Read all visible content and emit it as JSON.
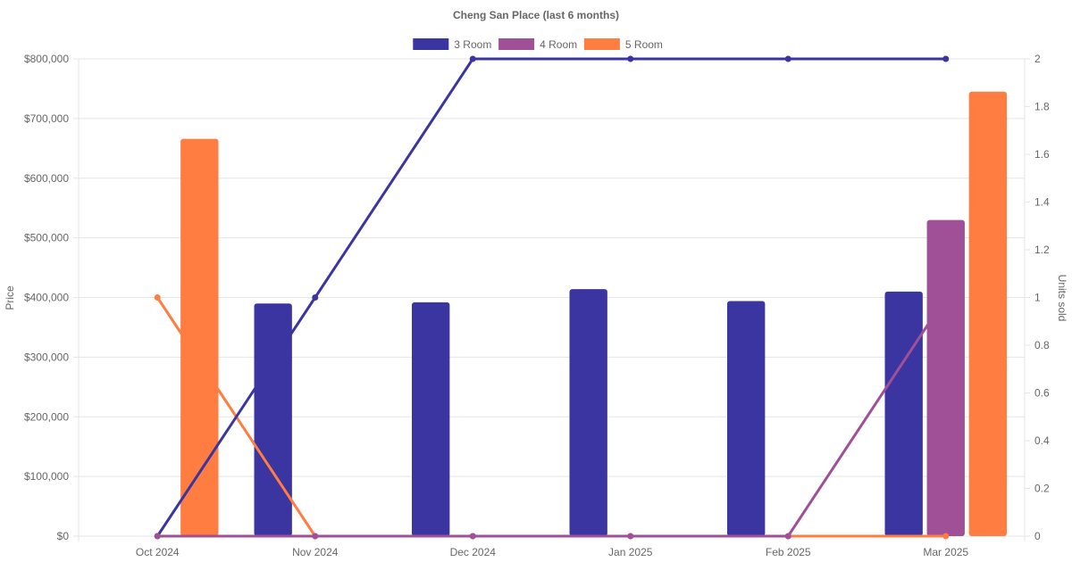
{
  "chart_data": {
    "type": "bar",
    "title": "Cheng San Place (last 6 months)",
    "categories": [
      "Oct 2024",
      "Nov 2024",
      "Dec 2024",
      "Jan 2025",
      "Feb 2025",
      "Mar 2025"
    ],
    "y_left": {
      "label": "Price",
      "range": [
        0,
        800000
      ],
      "ticks": [
        "$0",
        "$100,000",
        "$200,000",
        "$300,000",
        "$400,000",
        "$500,000",
        "$600,000",
        "$700,000",
        "$800,000"
      ]
    },
    "y_right": {
      "label": "Units sold",
      "range": [
        0,
        2
      ],
      "ticks": [
        "0",
        "0.2",
        "0.4",
        "0.6",
        "0.8",
        "1",
        "1.2",
        "1.4",
        "1.6",
        "1.8",
        "2"
      ]
    },
    "grid": true,
    "legend_position": "top-center",
    "series": [
      {
        "name": "3 Room",
        "color": "#3a35a0",
        "price": [
          null,
          390000,
          392000,
          414000,
          394000,
          410000
        ],
        "units": [
          0,
          1,
          2,
          2,
          2,
          2
        ]
      },
      {
        "name": "4 Room",
        "color": "#a05096",
        "price": [
          null,
          null,
          null,
          null,
          null,
          530000
        ],
        "units": [
          0,
          0,
          0,
          0,
          0,
          1
        ]
      },
      {
        "name": "5 Room",
        "color": "#ff7d40",
        "price": [
          666000,
          null,
          null,
          null,
          null,
          745000
        ],
        "units": [
          1,
          0,
          0,
          0,
          0,
          0
        ]
      }
    ]
  }
}
